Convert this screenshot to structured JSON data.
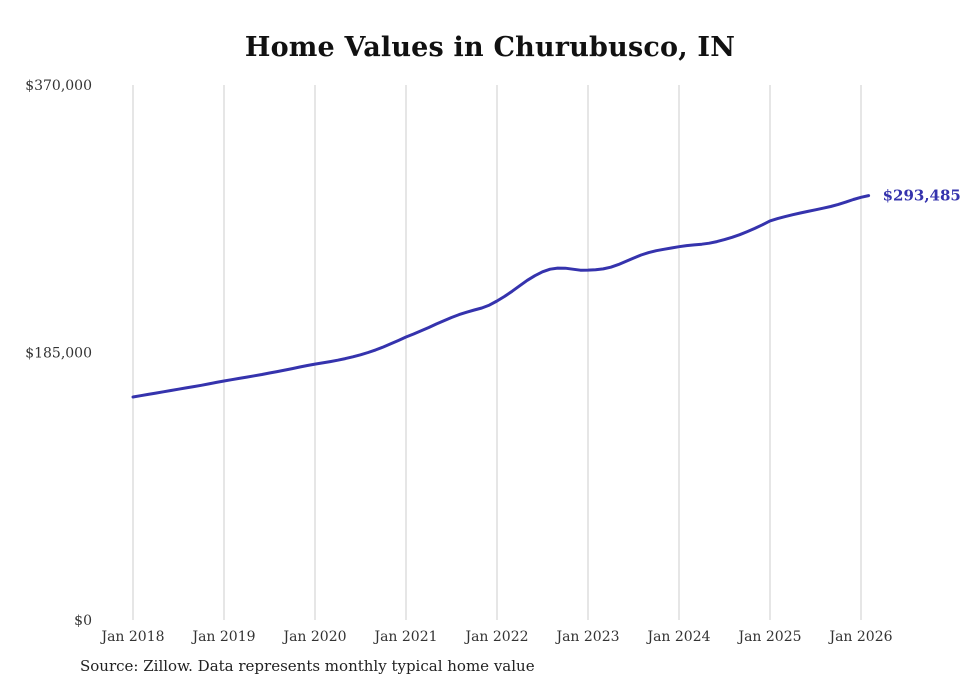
{
  "chart_data": {
    "type": "line",
    "title": "Home Values in Churubusco, IN",
    "source_note": "Source: Zillow. Data represents monthly typical home value",
    "frequency": "monthly",
    "x_start_month": "Jan 2018",
    "x_tick_labels": [
      "Jan 2018",
      "Jan 2019",
      "Jan 2020",
      "Jan 2021",
      "Jan 2022",
      "Jan 2023",
      "Jan 2024",
      "Jan 2025",
      "Jan 2026"
    ],
    "y_ticks": [
      {
        "value": 0,
        "label": "$0"
      },
      {
        "value": 185000,
        "label": "$185,000"
      },
      {
        "value": 370000,
        "label": "$370,000"
      }
    ],
    "ylim": [
      0,
      370000
    ],
    "grid": "vertical-only",
    "legend": "none",
    "line_color": "#3533ad",
    "grid_color": "#cccccc",
    "axis_text_color": "#333333",
    "end_annotation": "$293,485",
    "end_value": 293485,
    "series": [
      {
        "name": "Typical home value",
        "values": [
          154200,
          155100,
          156000,
          156900,
          157800,
          158700,
          159600,
          160500,
          161400,
          162300,
          163300,
          164300,
          165300,
          166200,
          167100,
          168000,
          168900,
          169800,
          170800,
          171800,
          172800,
          173900,
          175000,
          176000,
          177000,
          177800,
          178700,
          179700,
          180800,
          182000,
          183400,
          185000,
          186800,
          188800,
          191000,
          193300,
          195700,
          197800,
          200000,
          202300,
          204700,
          207000,
          209200,
          211200,
          212900,
          214400,
          215800,
          217800,
          220600,
          223800,
          227400,
          231200,
          234900,
          238100,
          240800,
          242600,
          243400,
          243300,
          242600,
          241900,
          242000,
          242200,
          242800,
          244000,
          245800,
          248000,
          250300,
          252400,
          254100,
          255400,
          256400,
          257300,
          258200,
          258900,
          259400,
          259900,
          260600,
          261700,
          263100,
          264700,
          266500,
          268600,
          270800,
          273300,
          276000,
          277600,
          279000,
          280300,
          281500,
          282600,
          283700,
          284800,
          286000,
          287400,
          289000,
          290800,
          292300,
          293485
        ]
      }
    ]
  }
}
